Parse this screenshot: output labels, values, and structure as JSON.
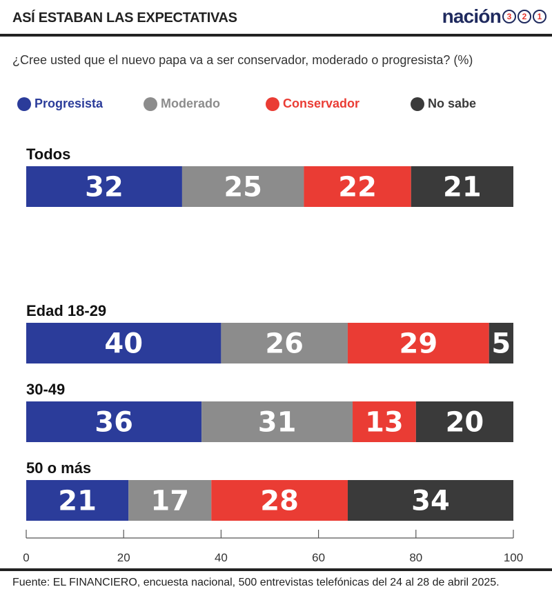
{
  "header": {
    "title": "ASÍ ESTABAN LAS EXPECTATIVAS",
    "logo_text": "nación",
    "logo_badges": [
      "3",
      "2",
      "1"
    ]
  },
  "question": "¿Cree usted que el nuevo papa va a ser conservador, moderado o progresista? (%)",
  "legend": [
    {
      "label": "Progresista",
      "color": "#2b3c9a"
    },
    {
      "label": "Moderado",
      "color": "#8c8c8c"
    },
    {
      "label": "Conservador",
      "color": "#ea3c34"
    },
    {
      "label": "No sabe",
      "color": "#3a3a3a"
    }
  ],
  "chart_data": {
    "type": "bar",
    "orientation": "horizontal",
    "stacked": true,
    "categories": [
      "Todos",
      "Edad 18-29",
      "30-49",
      "50 o más"
    ],
    "series": [
      {
        "name": "Progresista",
        "values": [
          32,
          40,
          36,
          21
        ]
      },
      {
        "name": "Moderado",
        "values": [
          25,
          26,
          31,
          17
        ]
      },
      {
        "name": "Conservador",
        "values": [
          22,
          29,
          13,
          28
        ]
      },
      {
        "name": "No sabe",
        "values": [
          21,
          5,
          20,
          34
        ]
      }
    ],
    "xlim": [
      0,
      100
    ],
    "x_ticks": [
      0,
      20,
      40,
      60,
      80,
      100
    ],
    "grid": false,
    "legend_position": "top"
  },
  "source": "Fuente: EL FINANCIERO, encuesta nacional, 500 entrevistas telefónicas del 24 al 28 de abril 2025."
}
